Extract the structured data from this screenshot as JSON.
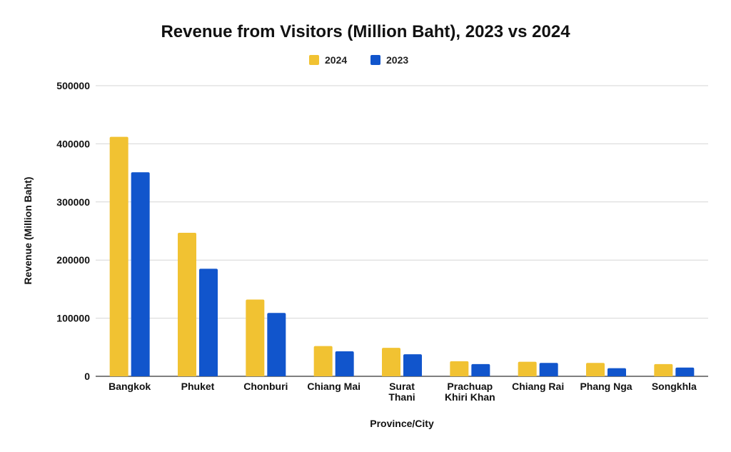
{
  "chart_data": {
    "type": "bar",
    "title": "Revenue from Visitors (Million Baht), 2023 vs 2024",
    "xlabel": "Province/City",
    "ylabel": "Revenue (Million Baht)",
    "ylim": [
      0,
      500000
    ],
    "yticks": [
      0,
      100000,
      200000,
      300000,
      400000,
      500000
    ],
    "grid": true,
    "legend_position": "top-center",
    "categories": [
      [
        "Bangkok"
      ],
      [
        "Phuket"
      ],
      [
        "Chonburi"
      ],
      [
        "Chiang Mai"
      ],
      [
        "Surat",
        "Thani"
      ],
      [
        "Prachuap",
        "Khiri Khan"
      ],
      [
        "Chiang Rai"
      ],
      [
        "Phang Nga"
      ],
      [
        "Songkhla"
      ]
    ],
    "series": [
      {
        "name": "2024",
        "color": "#f1c232",
        "values": [
          412000,
          247000,
          132000,
          52000,
          49000,
          26000,
          25000,
          23000,
          21000
        ]
      },
      {
        "name": "2023",
        "color": "#1155cc",
        "values": [
          351000,
          185000,
          109000,
          43000,
          38000,
          21000,
          23000,
          14000,
          15000
        ]
      }
    ]
  }
}
